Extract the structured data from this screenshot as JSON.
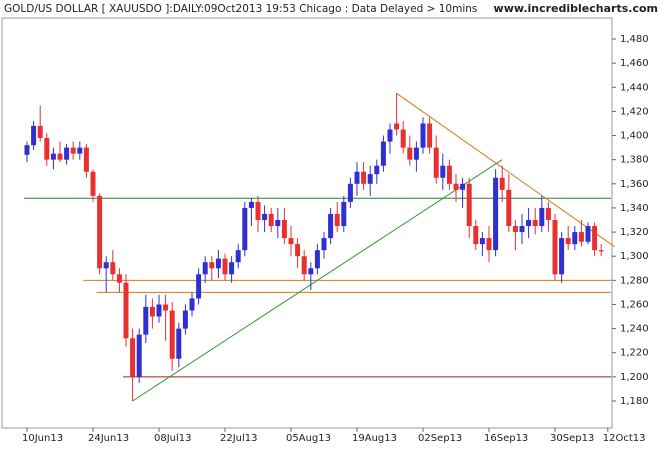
{
  "chart_data": {
    "type": "candlestick",
    "title": "GOLD/US DOLLAR [ XAUUSDO ]:DAILY:09Oct2013 19:53 Chicago : Data Delayed > 10mins",
    "source": "www.incrediblecharts.com",
    "categories": [
      "10Jun13",
      null,
      null,
      null,
      null,
      null,
      null,
      null,
      null,
      null,
      "24Jun13",
      null,
      null,
      null,
      null,
      null,
      null,
      null,
      null,
      null,
      "08Jul13",
      null,
      null,
      null,
      null,
      null,
      null,
      null,
      null,
      null,
      "22Jul13",
      null,
      null,
      null,
      null,
      null,
      null,
      null,
      null,
      null,
      "05Aug13",
      null,
      null,
      null,
      null,
      null,
      null,
      null,
      null,
      null,
      "19Aug13",
      null,
      null,
      null,
      null,
      null,
      null,
      null,
      null,
      null,
      "02Sep13",
      null,
      null,
      null,
      null,
      null,
      null,
      null,
      null,
      null,
      "16Sep13",
      null,
      null,
      null,
      null,
      null,
      null,
      null,
      null,
      null,
      "30Sep13",
      null,
      null,
      null,
      null,
      null,
      null,
      null,
      "12Oct13"
    ],
    "open": [
      1384,
      1392,
      1408,
      1398,
      1380,
      1385,
      1380,
      1390,
      1385,
      1390,
      1370,
      1350,
      1290,
      1295,
      1285,
      1278,
      1232,
      1200,
      1235,
      1258,
      1250,
      1260,
      1255,
      1215,
      1240,
      1255,
      1265,
      1285,
      1295,
      1290,
      1298,
      1285,
      1295,
      1305,
      1340,
      1345,
      1330,
      1335,
      1325,
      1330,
      1315,
      1310,
      1300,
      1285,
      1290,
      1305,
      1315,
      1335,
      1325,
      1345,
      1360,
      1370,
      1360,
      1368,
      1375,
      1395,
      1410,
      1405,
      1390,
      1380,
      1390,
      1410,
      1390,
      1365,
      1375,
      1360,
      1355,
      1360,
      1325,
      1310,
      1315,
      1305,
      1365,
      1355,
      1325,
      1320,
      1325,
      1330,
      1325,
      1340,
      1330,
      1285,
      1315,
      1310,
      1320,
      1312,
      1325,
      1305,
      null
    ],
    "high": [
      1395,
      1412,
      1425,
      1402,
      1390,
      1395,
      1393,
      1395,
      1395,
      1393,
      1372,
      1352,
      1300,
      1305,
      1290,
      1285,
      1240,
      1240,
      1268,
      1265,
      1268,
      1268,
      1262,
      1245,
      1260,
      1270,
      1290,
      1300,
      1300,
      1305,
      1302,
      1300,
      1310,
      1345,
      1348,
      1350,
      1342,
      1340,
      1340,
      1340,
      1325,
      1315,
      1305,
      1295,
      1310,
      1320,
      1340,
      1345,
      1350,
      1365,
      1378,
      1378,
      1375,
      1380,
      1400,
      1410,
      1435,
      1412,
      1400,
      1395,
      1415,
      1415,
      1400,
      1385,
      1380,
      1368,
      1365,
      1365,
      1330,
      1320,
      1325,
      1372,
      1375,
      1368,
      1330,
      1335,
      1340,
      1340,
      1350,
      1345,
      1335,
      1320,
      1325,
      1325,
      1330,
      1328,
      1328,
      1310,
      null
    ],
    "low": [
      1378,
      1388,
      1395,
      1375,
      1372,
      1378,
      1376,
      1380,
      1380,
      1365,
      1345,
      1285,
      1270,
      1280,
      1270,
      1225,
      1180,
      1195,
      1228,
      1240,
      1245,
      1230,
      1205,
      1208,
      1235,
      1250,
      1260,
      1278,
      1280,
      1282,
      1280,
      1278,
      1290,
      1300,
      1325,
      1320,
      1320,
      1320,
      1315,
      1310,
      1300,
      1290,
      1280,
      1272,
      1285,
      1298,
      1310,
      1320,
      1320,
      1340,
      1350,
      1355,
      1350,
      1360,
      1370,
      1385,
      1400,
      1385,
      1375,
      1370,
      1385,
      1385,
      1360,
      1355,
      1355,
      1345,
      1340,
      1315,
      1305,
      1300,
      1295,
      1300,
      1345,
      1320,
      1305,
      1310,
      1315,
      1318,
      1320,
      1320,
      1280,
      1278,
      1305,
      1305,
      1308,
      1310,
      1300,
      1300,
      null
    ],
    "close": [
      1392,
      1408,
      1398,
      1380,
      1385,
      1380,
      1390,
      1385,
      1390,
      1370,
      1350,
      1290,
      1295,
      1285,
      1278,
      1232,
      1200,
      1235,
      1258,
      1250,
      1260,
      1255,
      1215,
      1240,
      1255,
      1265,
      1285,
      1295,
      1290,
      1298,
      1285,
      1295,
      1305,
      1340,
      1345,
      1330,
      1335,
      1325,
      1330,
      1315,
      1310,
      1300,
      1285,
      1290,
      1305,
      1315,
      1335,
      1325,
      1345,
      1360,
      1370,
      1360,
      1368,
      1375,
      1395,
      1405,
      1405,
      1390,
      1380,
      1390,
      1410,
      1390,
      1365,
      1375,
      1360,
      1355,
      1360,
      1325,
      1310,
      1315,
      1305,
      1365,
      1355,
      1325,
      1320,
      1325,
      1330,
      1325,
      1340,
      1330,
      1285,
      1315,
      1310,
      1320,
      1312,
      1325,
      1305,
      1304,
      null
    ],
    "up_color": "#3030d0",
    "down_color": "#e83030",
    "ylim": [
      1170,
      1490
    ],
    "yticks": [
      {
        "value": 1180,
        "label": "1,180"
      },
      {
        "value": 1200,
        "label": "1,200"
      },
      {
        "value": 1220,
        "label": "1,220"
      },
      {
        "value": 1240,
        "label": "1,240"
      },
      {
        "value": 1260,
        "label": "1,260"
      },
      {
        "value": 1280,
        "label": "1,280"
      },
      {
        "value": 1300,
        "label": "1,300"
      },
      {
        "value": 1320,
        "label": "1,320"
      },
      {
        "value": 1340,
        "label": "1,340"
      },
      {
        "value": 1360,
        "label": "1,360"
      },
      {
        "value": 1380,
        "label": "1,380"
      },
      {
        "value": 1400,
        "label": "1,400"
      },
      {
        "value": 1420,
        "label": "1,420"
      },
      {
        "value": 1440,
        "label": "1,440"
      },
      {
        "value": 1460,
        "label": "1,460"
      },
      {
        "value": 1480,
        "label": "1,480"
      }
    ],
    "hlines": [
      {
        "value": 1348,
        "start": 0,
        "color": "#2e7d2e"
      },
      {
        "value": 1280,
        "start": 9,
        "color": "#d2781e"
      },
      {
        "value": 1270,
        "start": 11,
        "color": "#d2781e"
      },
      {
        "value": 1200,
        "start": 15,
        "color": "#b01818"
      }
    ],
    "trendlines": [
      {
        "from": [
          16,
          1180
        ],
        "to": [
          72,
          1380
        ],
        "color": "#2e9a2e"
      },
      {
        "from": [
          56,
          1435
        ],
        "to": [
          89,
          1308
        ],
        "color": "#d2781e"
      }
    ]
  }
}
